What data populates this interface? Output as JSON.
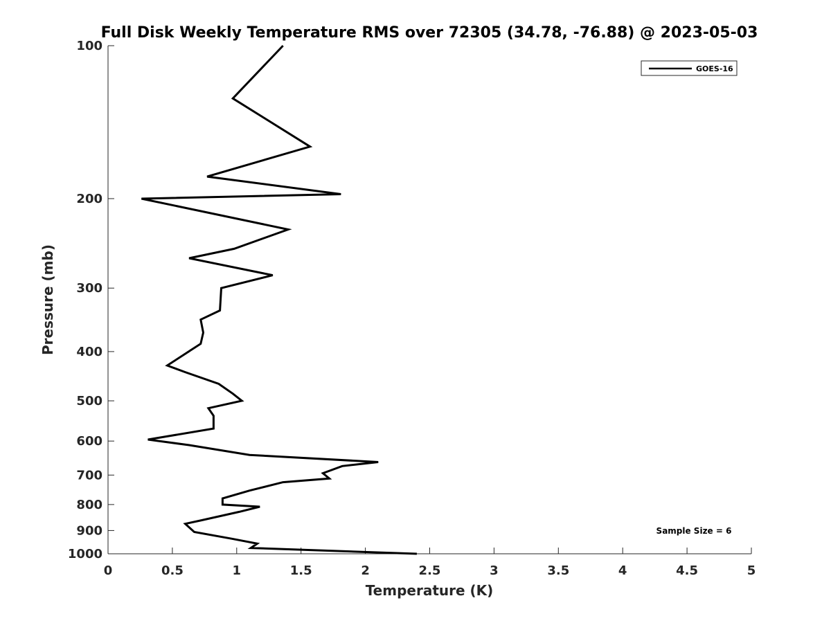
{
  "chart_data": {
    "type": "line",
    "title": "Full Disk Weekly Temperature RMS over 72305 (34.78, -76.88) @ 2023-05-03",
    "xlabel": "Temperature (K)",
    "ylabel": "Pressure (mb)",
    "xlim": [
      0,
      5
    ],
    "ylim": [
      1000,
      100
    ],
    "y_scale": "log",
    "y_reversed": true,
    "grid": false,
    "x_ticks": [
      0,
      0.5,
      1,
      1.5,
      2,
      2.5,
      3,
      3.5,
      4,
      4.5,
      5
    ],
    "x_tick_labels": [
      "0",
      "0.5",
      "1",
      "1.5",
      "2",
      "2.5",
      "3",
      "3.5",
      "4",
      "4.5",
      "5"
    ],
    "y_ticks": [
      100,
      200,
      300,
      400,
      500,
      600,
      700,
      800,
      900,
      1000
    ],
    "y_tick_labels": [
      "100",
      "200",
      "300",
      "400",
      "500",
      "600",
      "700",
      "800",
      "900",
      "1000"
    ],
    "legend_position": "top-right",
    "series": [
      {
        "name": "GOES-16",
        "color": "#000000",
        "points": [
          [
            1.36,
            100
          ],
          [
            0.97,
            127
          ],
          [
            1.57,
            158
          ],
          [
            0.77,
            181
          ],
          [
            1.81,
            196
          ],
          [
            0.26,
            200
          ],
          [
            1.4,
            230
          ],
          [
            0.98,
            251
          ],
          [
            0.63,
            262
          ],
          [
            1.28,
            283
          ],
          [
            0.88,
            300
          ],
          [
            0.87,
            332
          ],
          [
            0.72,
            346
          ],
          [
            0.74,
            367
          ],
          [
            0.72,
            386
          ],
          [
            0.64,
            398
          ],
          [
            0.46,
            426
          ],
          [
            0.6,
            439
          ],
          [
            0.86,
            463
          ],
          [
            0.97,
            484
          ],
          [
            1.04,
            500
          ],
          [
            0.78,
            517
          ],
          [
            0.82,
            535
          ],
          [
            0.82,
            567
          ],
          [
            0.31,
            596
          ],
          [
            0.63,
            611
          ],
          [
            1.1,
            639
          ],
          [
            2.1,
            660
          ],
          [
            1.82,
            672
          ],
          [
            1.67,
            694
          ],
          [
            1.72,
            711
          ],
          [
            1.36,
            723
          ],
          [
            1.1,
            751
          ],
          [
            0.89,
            778
          ],
          [
            0.89,
            800
          ],
          [
            1.18,
            808
          ],
          [
            1.02,
            827
          ],
          [
            0.72,
            860
          ],
          [
            0.6,
            873
          ],
          [
            0.67,
            906
          ],
          [
            0.96,
            934
          ],
          [
            1.16,
            955
          ],
          [
            1.11,
            974
          ],
          [
            2.4,
            1000
          ]
        ]
      }
    ],
    "annotations": [
      "Sample Size = 6"
    ]
  }
}
